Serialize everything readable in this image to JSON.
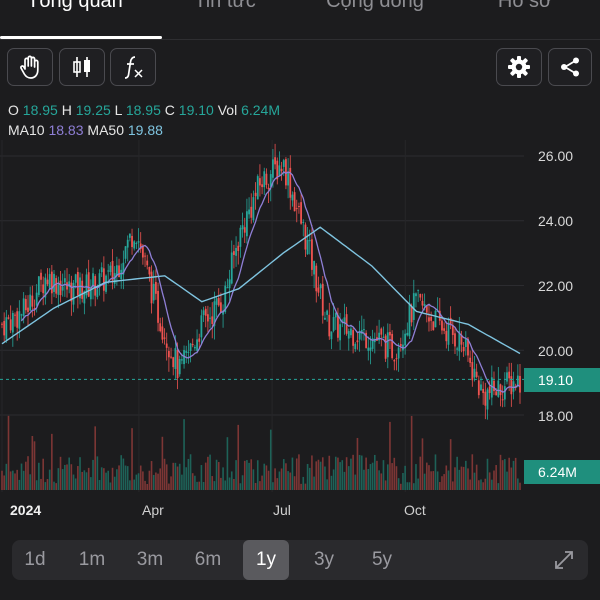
{
  "tabs": [
    {
      "label": "Tổng quan",
      "active": true
    },
    {
      "label": "Tin tức",
      "active": false
    },
    {
      "label": "Cộng đồng",
      "active": false
    },
    {
      "label": "Hồ sơ",
      "active": false
    }
  ],
  "toolbar": {
    "icons": [
      "hand-pointer-icon",
      "candlestick-icon",
      "function-icon",
      "gear-icon",
      "share-icon"
    ]
  },
  "legend": {
    "o_label": "O",
    "o": "18.95",
    "h_label": "H",
    "h": "19.25",
    "l_label": "L",
    "l": "18.95",
    "c_label": "C",
    "c": "19.10",
    "vol_label": "Vol",
    "vol": "6.24M",
    "ma10_label": "MA10",
    "ma10": "18.83",
    "ma50_label": "MA50",
    "ma50": "19.88"
  },
  "colors": {
    "up": "#26a69a",
    "down": "#ef5350",
    "ma10": "#8f7fd6",
    "ma50": "#7fc4e0",
    "background": "#1c1c1e"
  },
  "chart_data": {
    "type": "candlestick",
    "price_axis": [
      "26.00",
      "24.00",
      "22.00",
      "20.00",
      "18.00"
    ],
    "ylim": [
      17.4,
      26.9
    ],
    "x_labels": [
      "2024",
      "Apr",
      "Jul",
      "Oct"
    ],
    "current_price": "19.10",
    "current_volume": "6.24M",
    "close_trend": [
      {
        "t": 0,
        "v": 20.8
      },
      {
        "t": 6,
        "v": 21.2
      },
      {
        "t": 12,
        "v": 22.3
      },
      {
        "t": 18,
        "v": 21.9
      },
      {
        "t": 24,
        "v": 22.0
      },
      {
        "t": 30,
        "v": 22.3
      },
      {
        "t": 36,
        "v": 23.8
      },
      {
        "t": 42,
        "v": 21.2
      },
      {
        "t": 48,
        "v": 19.3
      },
      {
        "t": 54,
        "v": 20.8
      },
      {
        "t": 60,
        "v": 21.6
      },
      {
        "t": 64,
        "v": 23.5
      },
      {
        "t": 70,
        "v": 25.2
      },
      {
        "t": 76,
        "v": 25.8
      },
      {
        "t": 82,
        "v": 23.5
      },
      {
        "t": 88,
        "v": 20.8
      },
      {
        "t": 94,
        "v": 20.6
      },
      {
        "t": 100,
        "v": 20.4
      },
      {
        "t": 106,
        "v": 20.0
      },
      {
        "t": 112,
        "v": 21.5
      },
      {
        "t": 118,
        "v": 20.8
      },
      {
        "t": 124,
        "v": 20.3
      },
      {
        "t": 130,
        "v": 18.6
      },
      {
        "t": 136,
        "v": 18.9
      },
      {
        "t": 140,
        "v": 19.1
      }
    ],
    "ma50_trend": [
      {
        "t": 0,
        "v": 20.2
      },
      {
        "t": 14,
        "v": 21.3
      },
      {
        "t": 28,
        "v": 22.1
      },
      {
        "t": 44,
        "v": 22.3
      },
      {
        "t": 54,
        "v": 21.5
      },
      {
        "t": 64,
        "v": 21.9
      },
      {
        "t": 76,
        "v": 23.0
      },
      {
        "t": 86,
        "v": 23.8
      },
      {
        "t": 100,
        "v": 22.6
      },
      {
        "t": 112,
        "v": 21.2
      },
      {
        "t": 126,
        "v": 20.8
      },
      {
        "t": 140,
        "v": 19.9
      }
    ]
  },
  "ranges": [
    {
      "label": "1d",
      "active": false
    },
    {
      "label": "1m",
      "active": false
    },
    {
      "label": "3m",
      "active": false
    },
    {
      "label": "6m",
      "active": false
    },
    {
      "label": "1y",
      "active": true
    },
    {
      "label": "3y",
      "active": false
    },
    {
      "label": "5y",
      "active": false
    }
  ]
}
